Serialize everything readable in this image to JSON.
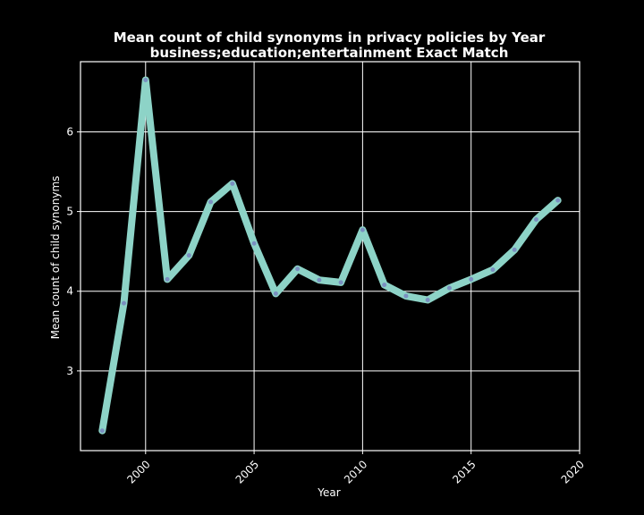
{
  "chart_data": {
    "type": "line",
    "title": "Mean count of child synonyms in privacy policies by Year",
    "subtitle": "business;education;entertainment Exact Match",
    "xlabel": "Year",
    "ylabel": "Mean count of child synonyms",
    "xlim": [
      1997,
      2020
    ],
    "ylim": [
      2.0,
      6.88
    ],
    "x_ticks": [
      2000,
      2005,
      2010,
      2015,
      2020
    ],
    "y_ticks": [
      3,
      4,
      5,
      6
    ],
    "grid": true,
    "series": [
      {
        "x": [
          1998,
          1999,
          2000,
          2001,
          2002,
          2003,
          2004,
          2005,
          2006,
          2007,
          2008,
          2009,
          2010,
          2011,
          2012,
          2013,
          2014,
          2015,
          2016,
          2017,
          2018,
          2019
        ],
        "values": [
          2.25,
          3.85,
          6.65,
          4.15,
          4.45,
          5.12,
          5.35,
          4.6,
          3.97,
          4.28,
          4.14,
          4.11,
          4.77,
          4.08,
          3.94,
          3.89,
          4.04,
          4.15,
          4.27,
          4.52,
          4.9,
          5.14
        ]
      }
    ],
    "colors": {
      "line": "#8dd3c7",
      "marker": "#7a8fc0",
      "background": "#000000",
      "text": "#ffffff"
    }
  }
}
